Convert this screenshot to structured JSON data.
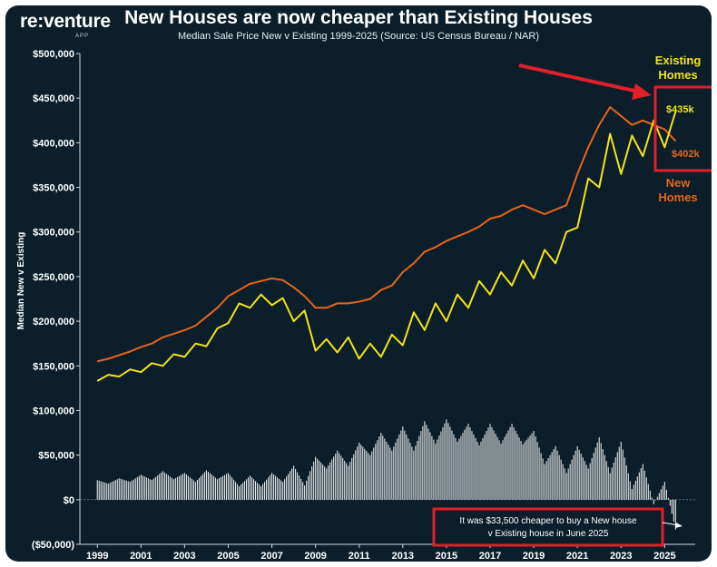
{
  "header": {
    "logo": "re:venture",
    "logo_sub": "APP",
    "title": "New Houses are now cheaper than Existing Houses",
    "subtitle": "Median Sale Price New v Existing 1999-2025 (Source: US Census Bureau / NAR)"
  },
  "colors": {
    "background": "#0b1e2a",
    "new_homes": "#e8641c",
    "existing_homes": "#f3e21c",
    "difference_bars": "#e6e6e6",
    "highlight": "#e0202a"
  },
  "annotations": {
    "existing_label_1": "Existing",
    "existing_label_2": "Homes",
    "new_label_1": "New",
    "new_label_2": "Homes",
    "existing_value": "$435k",
    "new_value": "$402k",
    "note_line_1": "It was $33,500 cheaper to buy a New house",
    "note_line_2": "v Existing house in June 2025"
  },
  "chart_data": {
    "type": "line",
    "ylabel": "Median New v Existing",
    "ylim": [
      -50000,
      500000
    ],
    "yticks": [
      -50000,
      0,
      50000,
      100000,
      150000,
      200000,
      250000,
      300000,
      350000,
      400000,
      450000,
      500000
    ],
    "ytick_labels": [
      "($50,000)",
      "$0",
      "$50,000",
      "$100,000",
      "$150,000",
      "$200,000",
      "$250,000",
      "$300,000",
      "$350,000",
      "$400,000",
      "$450,000",
      "$500,000"
    ],
    "xlim": [
      1998.2,
      2026.4
    ],
    "x_tick_labels": [
      "1999",
      "2001",
      "2003",
      "2005",
      "2007",
      "2009",
      "2011",
      "2013",
      "2015",
      "2017",
      "2019",
      "2021",
      "2023",
      "2025"
    ],
    "grid": false,
    "series": [
      {
        "name": "New Homes",
        "points": [
          [
            1999.0,
            155000
          ],
          [
            1999.5,
            158000
          ],
          [
            2000.0,
            162000
          ],
          [
            2000.5,
            166000
          ],
          [
            2001.0,
            171000
          ],
          [
            2001.5,
            175000
          ],
          [
            2002.0,
            182000
          ],
          [
            2002.5,
            186000
          ],
          [
            2003.0,
            190000
          ],
          [
            2003.5,
            195000
          ],
          [
            2004.0,
            205000
          ],
          [
            2004.5,
            215000
          ],
          [
            2005.0,
            228000
          ],
          [
            2005.5,
            235000
          ],
          [
            2006.0,
            242000
          ],
          [
            2006.5,
            245000
          ],
          [
            2007.0,
            248000
          ],
          [
            2007.5,
            246000
          ],
          [
            2008.0,
            238000
          ],
          [
            2008.5,
            228000
          ],
          [
            2009.0,
            215000
          ],
          [
            2009.5,
            215000
          ],
          [
            2010.0,
            220000
          ],
          [
            2010.5,
            220000
          ],
          [
            2011.0,
            222000
          ],
          [
            2011.5,
            225000
          ],
          [
            2012.0,
            235000
          ],
          [
            2012.5,
            240000
          ],
          [
            2013.0,
            255000
          ],
          [
            2013.5,
            265000
          ],
          [
            2014.0,
            278000
          ],
          [
            2014.5,
            283000
          ],
          [
            2015.0,
            290000
          ],
          [
            2015.5,
            295000
          ],
          [
            2016.0,
            300000
          ],
          [
            2016.5,
            306000
          ],
          [
            2017.0,
            315000
          ],
          [
            2017.5,
            318000
          ],
          [
            2018.0,
            325000
          ],
          [
            2018.5,
            330000
          ],
          [
            2019.0,
            325000
          ],
          [
            2019.5,
            320000
          ],
          [
            2020.0,
            325000
          ],
          [
            2020.5,
            330000
          ],
          [
            2021.0,
            365000
          ],
          [
            2021.5,
            395000
          ],
          [
            2022.0,
            420000
          ],
          [
            2022.5,
            440000
          ],
          [
            2023.0,
            430000
          ],
          [
            2023.5,
            420000
          ],
          [
            2024.0,
            425000
          ],
          [
            2024.5,
            420000
          ],
          [
            2025.0,
            415000
          ],
          [
            2025.5,
            402000
          ]
        ]
      },
      {
        "name": "Existing Homes",
        "points": [
          [
            1999.0,
            133000
          ],
          [
            1999.5,
            140000
          ],
          [
            2000.0,
            138000
          ],
          [
            2000.5,
            146000
          ],
          [
            2001.0,
            143000
          ],
          [
            2001.5,
            153000
          ],
          [
            2002.0,
            150000
          ],
          [
            2002.5,
            163000
          ],
          [
            2003.0,
            160000
          ],
          [
            2003.5,
            175000
          ],
          [
            2004.0,
            172000
          ],
          [
            2004.5,
            192000
          ],
          [
            2005.0,
            198000
          ],
          [
            2005.5,
            220000
          ],
          [
            2006.0,
            215000
          ],
          [
            2006.5,
            230000
          ],
          [
            2007.0,
            218000
          ],
          [
            2007.5,
            226000
          ],
          [
            2008.0,
            200000
          ],
          [
            2008.5,
            212000
          ],
          [
            2009.0,
            167000
          ],
          [
            2009.5,
            180000
          ],
          [
            2010.0,
            165000
          ],
          [
            2010.5,
            182000
          ],
          [
            2011.0,
            158000
          ],
          [
            2011.5,
            175000
          ],
          [
            2012.0,
            160000
          ],
          [
            2012.5,
            185000
          ],
          [
            2013.0,
            173000
          ],
          [
            2013.5,
            210000
          ],
          [
            2014.0,
            190000
          ],
          [
            2014.5,
            220000
          ],
          [
            2015.0,
            200000
          ],
          [
            2015.5,
            230000
          ],
          [
            2016.0,
            215000
          ],
          [
            2016.5,
            245000
          ],
          [
            2017.0,
            230000
          ],
          [
            2017.5,
            255000
          ],
          [
            2018.0,
            240000
          ],
          [
            2018.5,
            268000
          ],
          [
            2019.0,
            248000
          ],
          [
            2019.5,
            280000
          ],
          [
            2020.0,
            265000
          ],
          [
            2020.5,
            300000
          ],
          [
            2021.0,
            305000
          ],
          [
            2021.5,
            360000
          ],
          [
            2022.0,
            350000
          ],
          [
            2022.5,
            410000
          ],
          [
            2023.0,
            365000
          ],
          [
            2023.5,
            408000
          ],
          [
            2024.0,
            385000
          ],
          [
            2024.5,
            425000
          ],
          [
            2025.0,
            395000
          ],
          [
            2025.5,
            435000
          ]
        ]
      },
      {
        "name": "Difference",
        "type": "bar",
        "points": [
          [
            1999.0,
            22000
          ],
          [
            1999.5,
            18000
          ],
          [
            2000.0,
            24000
          ],
          [
            2000.5,
            20000
          ],
          [
            2001.0,
            28000
          ],
          [
            2001.5,
            22000
          ],
          [
            2002.0,
            32000
          ],
          [
            2002.5,
            23000
          ],
          [
            2003.0,
            30000
          ],
          [
            2003.5,
            20000
          ],
          [
            2004.0,
            33000
          ],
          [
            2004.5,
            23000
          ],
          [
            2005.0,
            30000
          ],
          [
            2005.5,
            15000
          ],
          [
            2006.0,
            27000
          ],
          [
            2006.5,
            15000
          ],
          [
            2007.0,
            30000
          ],
          [
            2007.5,
            20000
          ],
          [
            2008.0,
            38000
          ],
          [
            2008.5,
            16000
          ],
          [
            2009.0,
            48000
          ],
          [
            2009.5,
            35000
          ],
          [
            2010.0,
            55000
          ],
          [
            2010.5,
            38000
          ],
          [
            2011.0,
            64000
          ],
          [
            2011.5,
            50000
          ],
          [
            2012.0,
            75000
          ],
          [
            2012.5,
            55000
          ],
          [
            2013.0,
            82000
          ],
          [
            2013.5,
            55000
          ],
          [
            2014.0,
            88000
          ],
          [
            2014.5,
            63000
          ],
          [
            2015.0,
            90000
          ],
          [
            2015.5,
            65000
          ],
          [
            2016.0,
            85000
          ],
          [
            2016.5,
            61000
          ],
          [
            2017.0,
            85000
          ],
          [
            2017.5,
            63000
          ],
          [
            2018.0,
            85000
          ],
          [
            2018.5,
            62000
          ],
          [
            2019.0,
            77000
          ],
          [
            2019.5,
            40000
          ],
          [
            2020.0,
            60000
          ],
          [
            2020.5,
            30000
          ],
          [
            2021.0,
            60000
          ],
          [
            2021.5,
            35000
          ],
          [
            2022.0,
            70000
          ],
          [
            2022.5,
            30000
          ],
          [
            2023.0,
            65000
          ],
          [
            2023.5,
            12000
          ],
          [
            2024.0,
            40000
          ],
          [
            2024.5,
            -5000
          ],
          [
            2025.0,
            20000
          ],
          [
            2025.5,
            -33500
          ]
        ]
      }
    ]
  }
}
